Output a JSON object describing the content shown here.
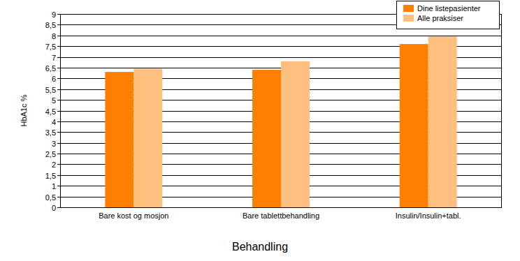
{
  "chart_data": {
    "type": "bar",
    "x_label": "Behandling",
    "y_label": "HbA1c %",
    "categories": [
      "Bare kost og mosjon",
      "Bare tablettbehandling",
      "Insulin/Insulin+tabl."
    ],
    "series": [
      {
        "name": "Dine listepasienter",
        "color": "#FF8000",
        "values": [
          6.3,
          6.4,
          7.6
        ]
      },
      {
        "name": "Alle praksiser",
        "color": "#FFBF80",
        "values": [
          6.45,
          6.8,
          7.95
        ]
      }
    ],
    "ylim": [
      0,
      9
    ],
    "yticks": [
      0,
      {
        "value": 0.5,
        "label": "0,5"
      },
      1,
      {
        "value": 1.5,
        "label": "1,5"
      },
      2,
      {
        "value": 2.5,
        "label": "2,5"
      },
      3,
      {
        "value": 3.5,
        "label": "3,5"
      },
      4,
      {
        "value": 4.5,
        "label": "4,5"
      },
      5,
      {
        "value": 5.5,
        "label": "5,5"
      },
      6,
      {
        "value": 6.5,
        "label": "6,5"
      },
      7,
      {
        "value": 7.5,
        "label": "7,5"
      },
      8,
      {
        "value": 8.5,
        "label": "8,5"
      },
      9
    ],
    "grid": true,
    "legend": "top-right"
  }
}
